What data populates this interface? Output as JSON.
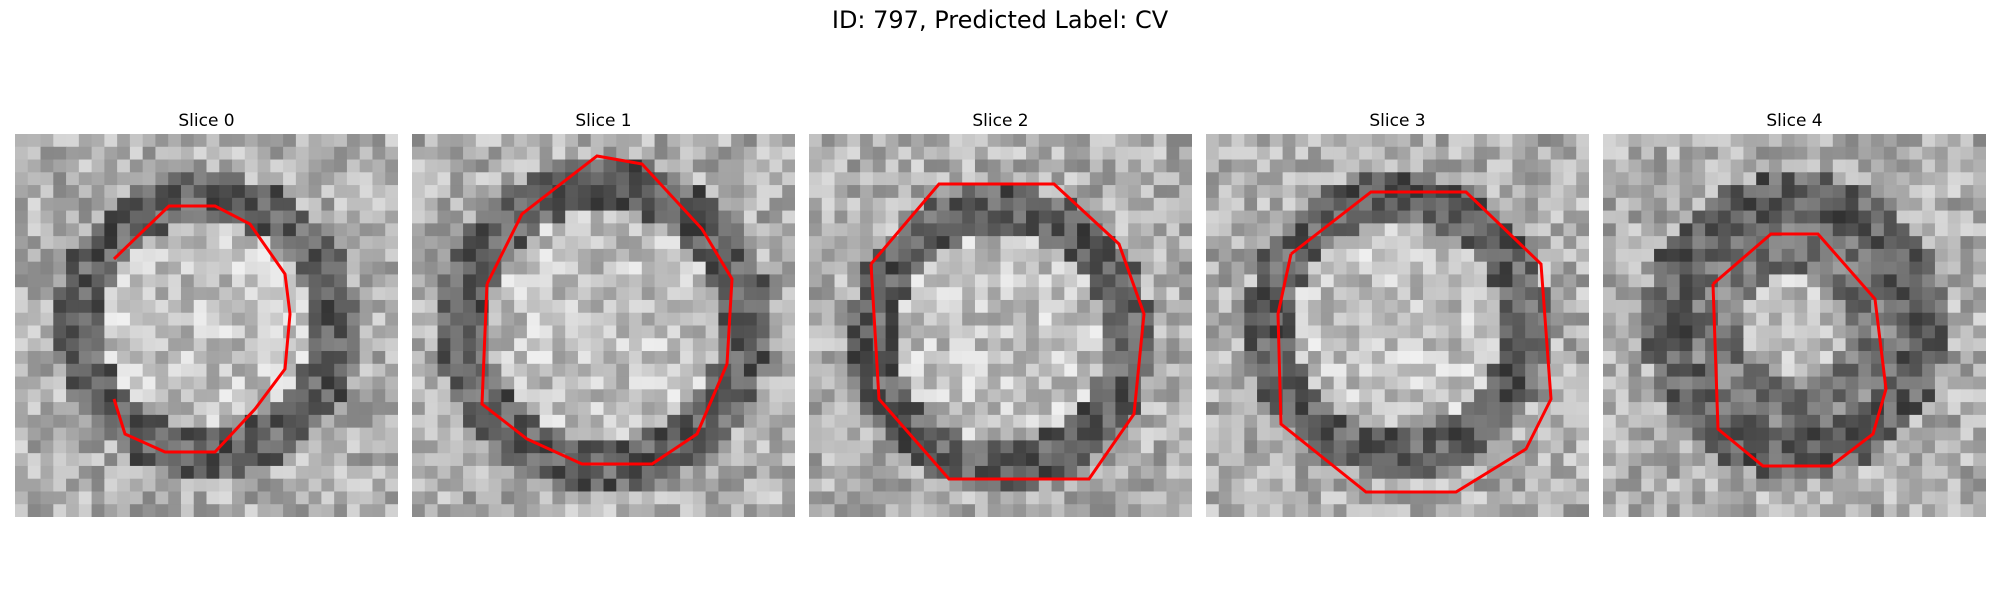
{
  "figure": {
    "title": "ID: 797, Predicted Label: CV",
    "contour_color": "#ff0000",
    "grid_size": 30,
    "panels": [
      {
        "label": "Slice 0"
      },
      {
        "label": "Slice 1"
      },
      {
        "label": "Slice 2"
      },
      {
        "label": "Slice 3"
      },
      {
        "label": "Slice 4"
      }
    ]
  }
}
